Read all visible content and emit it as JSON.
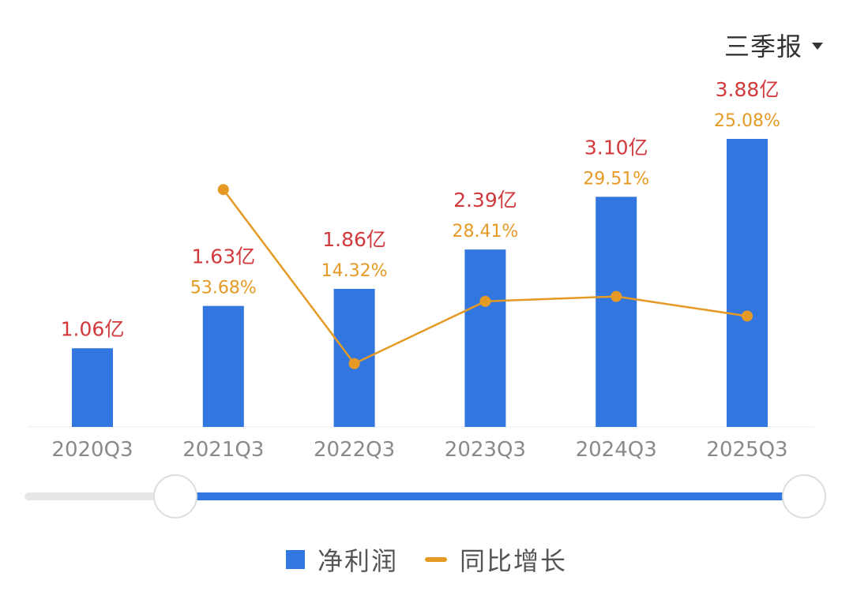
{
  "period_selector": {
    "label": "三季报",
    "icon": "caret-down-icon"
  },
  "chart_data": {
    "type": "bar",
    "categories": [
      "2020Q3",
      "2021Q3",
      "2022Q3",
      "2023Q3",
      "2024Q3",
      "2025Q3"
    ],
    "series": [
      {
        "name": "净利润",
        "kind": "bar",
        "unit": "亿",
        "values": [
          1.06,
          1.63,
          1.86,
          2.39,
          3.1,
          3.88
        ],
        "labels": [
          "1.06亿",
          "1.63亿",
          "1.86亿",
          "2.39亿",
          "3.10亿",
          "3.88亿"
        ],
        "color": "#3276E0",
        "label_color": "#D2393C"
      },
      {
        "name": "同比增长",
        "kind": "line",
        "unit": "%",
        "values": [
          null,
          53.68,
          14.32,
          28.41,
          29.51,
          25.08
        ],
        "labels": [
          "",
          "53.68%",
          "14.32%",
          "28.41%",
          "29.51%",
          "25.08%"
        ],
        "color": "#E59A26"
      }
    ],
    "y_left_range": [
      0,
      4.05
    ],
    "y_right_range": [
      0,
      68
    ],
    "xlabel": "",
    "ylabel": "",
    "grid": false,
    "legend_position": "bottom",
    "range_slider": {
      "start_fraction": 0.0,
      "end_fraction": 1.0
    }
  }
}
